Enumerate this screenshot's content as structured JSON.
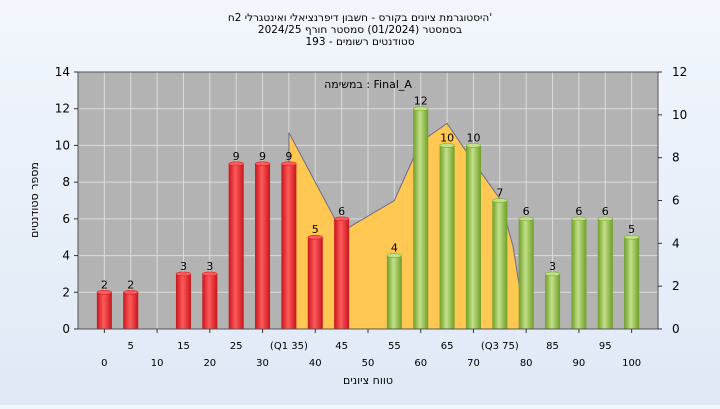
{
  "chart_data": {
    "type": "bar",
    "title_lines": [
      "היסטוגרמת ציונים בקורס - חשבון דיפרנציאלי ואינטגרלי 2ח'",
      "בסמסטר  (01/2024)  סמסטר חורף 2024/25",
      "סטודנטים רשומים - 193"
    ],
    "annotation": "במשימה : Final_A",
    "xlabel": "טווח ציונים",
    "ylabel": "מספר סטודנטים",
    "ylim_left": [
      0,
      14
    ],
    "yticks_left": [
      0,
      2,
      4,
      6,
      8,
      10,
      12,
      14
    ],
    "ylim_right": [
      0,
      12
    ],
    "yticks_right": [
      0,
      2,
      4,
      6,
      8,
      10,
      12
    ],
    "xlim": [
      -5,
      105
    ],
    "xticks_lower": [
      0,
      10,
      20,
      30,
      40,
      50,
      60,
      70,
      80,
      90,
      100
    ],
    "xticks_upper": [
      "5",
      "15",
      "25",
      "(Q1 35)",
      "45",
      "55",
      "65",
      "(Q3 75)",
      "85",
      "95"
    ],
    "bars": [
      {
        "x": 0,
        "value": 2,
        "color": "red"
      },
      {
        "x": 5,
        "value": 2,
        "color": "red"
      },
      {
        "x": 10,
        "value": 0,
        "color": "red"
      },
      {
        "x": 15,
        "value": 3,
        "color": "red"
      },
      {
        "x": 20,
        "value": 3,
        "color": "red"
      },
      {
        "x": 25,
        "value": 9,
        "color": "red"
      },
      {
        "x": 30,
        "value": 9,
        "color": "red"
      },
      {
        "x": 35,
        "value": 9,
        "color": "red"
      },
      {
        "x": 40,
        "value": 5,
        "color": "red"
      },
      {
        "x": 45,
        "value": 6,
        "color": "red"
      },
      {
        "x": 55,
        "value": 4,
        "color": "green"
      },
      {
        "x": 60,
        "value": 12,
        "color": "green"
      },
      {
        "x": 65,
        "value": 10,
        "color": "green"
      },
      {
        "x": 70,
        "value": 10,
        "color": "green"
      },
      {
        "x": 75,
        "value": 7,
        "color": "green"
      },
      {
        "x": 80,
        "value": 6,
        "color": "green"
      },
      {
        "x": 85,
        "value": 3,
        "color": "green"
      },
      {
        "x": 90,
        "value": 6,
        "color": "green"
      },
      {
        "x": 95,
        "value": 6,
        "color": "green"
      },
      {
        "x": 100,
        "value": 5,
        "color": "green"
      }
    ],
    "area": {
      "points": [
        [
          35,
          10.7
        ],
        [
          45,
          5.3
        ],
        [
          55,
          7.0
        ],
        [
          60,
          10.2
        ],
        [
          65,
          11.2
        ],
        [
          70,
          9.1
        ],
        [
          75,
          7.1
        ],
        [
          77.5,
          4.5
        ],
        [
          80,
          0.0
        ]
      ],
      "fill": "#ffc853",
      "stroke": "#6a6a8a"
    },
    "colors": {
      "plot_bg": "#b3b3b3",
      "grid": "#dcdcdc",
      "bar_red_dark": "#c8141c",
      "bar_red_light": "#ff5b5b",
      "bar_green_dark": "#6e9e24",
      "bar_green_light": "#c2e08a"
    }
  }
}
